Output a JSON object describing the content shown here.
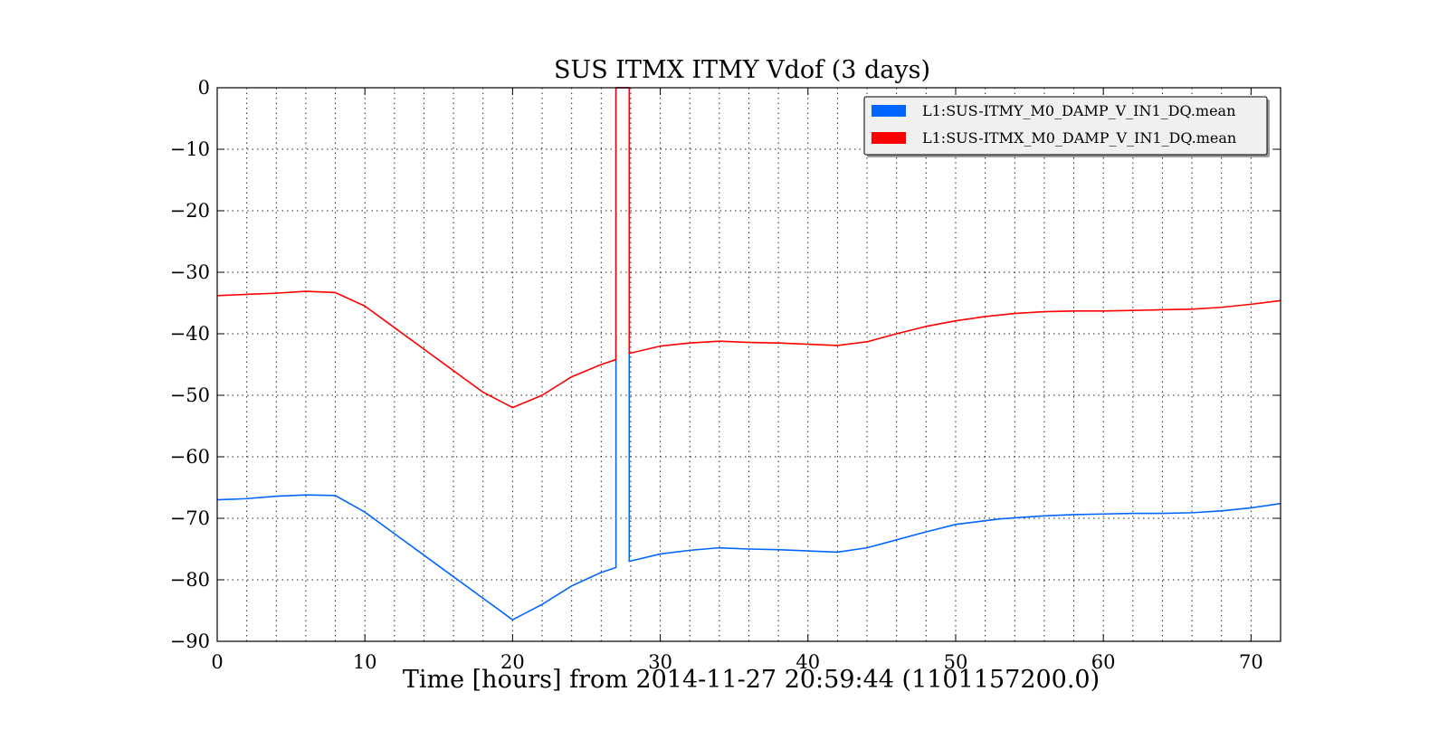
{
  "chart_data": {
    "type": "line",
    "title": "SUS ITMX ITMY Vdof (3 days)",
    "xlabel": "Time [hours] from 2014-11-27 20:59:44 (1101157200.0)",
    "ylabel": "",
    "xlim": [
      0,
      72
    ],
    "ylim": [
      -90,
      0
    ],
    "xticks": [
      0,
      10,
      20,
      30,
      40,
      50,
      60,
      70
    ],
    "xtick_labels": [
      "0",
      "10",
      "20",
      "30",
      "40",
      "50",
      "60",
      "70"
    ],
    "yticks": [
      0,
      -10,
      -20,
      -30,
      -40,
      -50,
      -60,
      -70,
      -80,
      -90
    ],
    "ytick_labels": [
      "0",
      "−10",
      "−20",
      "−30",
      "−40",
      "−50",
      "−60",
      "−70",
      "−80",
      "−90"
    ],
    "grid": true,
    "legend_position": "top-right",
    "series": [
      {
        "name": "L1:SUS-ITMY_M0_DAMP_V_IN1_DQ.mean",
        "color": "#0066ff",
        "points": [
          [
            0,
            -67.0
          ],
          [
            2,
            -66.8
          ],
          [
            4,
            -66.4
          ],
          [
            6,
            -66.2
          ],
          [
            8,
            -66.3
          ],
          [
            10,
            -69.0
          ],
          [
            12,
            -72.5
          ],
          [
            14,
            -76.0
          ],
          [
            16,
            -79.5
          ],
          [
            18,
            -83.0
          ],
          [
            20,
            -86.5
          ],
          [
            22,
            -84.0
          ],
          [
            24,
            -81.0
          ],
          [
            26,
            -78.8
          ],
          [
            27.0,
            -78.0
          ],
          [
            27.0,
            0
          ],
          [
            27.9,
            0
          ],
          [
            27.9,
            -77.0
          ],
          [
            30,
            -75.8
          ],
          [
            32,
            -75.2
          ],
          [
            34,
            -74.8
          ],
          [
            36,
            -75.0
          ],
          [
            38,
            -75.1
          ],
          [
            40,
            -75.3
          ],
          [
            42,
            -75.5
          ],
          [
            44,
            -74.8
          ],
          [
            46,
            -73.5
          ],
          [
            48,
            -72.2
          ],
          [
            50,
            -71.0
          ],
          [
            52,
            -70.4
          ],
          [
            53,
            -70.1
          ],
          [
            56,
            -69.6
          ],
          [
            58,
            -69.4
          ],
          [
            60,
            -69.3
          ],
          [
            62,
            -69.2
          ],
          [
            64,
            -69.2
          ],
          [
            66,
            -69.1
          ],
          [
            68,
            -68.8
          ],
          [
            70,
            -68.3
          ],
          [
            72,
            -67.6
          ]
        ]
      },
      {
        "name": "L1:SUS-ITMX_M0_DAMP_V_IN1_DQ.mean",
        "color": "#ff0000",
        "points": [
          [
            0,
            -33.8
          ],
          [
            2,
            -33.6
          ],
          [
            4,
            -33.4
          ],
          [
            6,
            -33.1
          ],
          [
            8,
            -33.3
          ],
          [
            10,
            -35.5
          ],
          [
            12,
            -39.0
          ],
          [
            14,
            -42.5
          ],
          [
            16,
            -46.0
          ],
          [
            18,
            -49.5
          ],
          [
            20,
            -52.0
          ],
          [
            22,
            -50.0
          ],
          [
            24,
            -47.0
          ],
          [
            26,
            -45.0
          ],
          [
            27.0,
            -44.2
          ],
          [
            27.0,
            0
          ],
          [
            27.9,
            0
          ],
          [
            27.9,
            -43.2
          ],
          [
            30,
            -42.0
          ],
          [
            32,
            -41.5
          ],
          [
            34,
            -41.2
          ],
          [
            36,
            -41.4
          ],
          [
            38,
            -41.5
          ],
          [
            40,
            -41.7
          ],
          [
            42,
            -41.9
          ],
          [
            44,
            -41.3
          ],
          [
            46,
            -40.0
          ],
          [
            48,
            -38.8
          ],
          [
            50,
            -37.9
          ],
          [
            52,
            -37.2
          ],
          [
            54,
            -36.7
          ],
          [
            56,
            -36.4
          ],
          [
            58,
            -36.3
          ],
          [
            60,
            -36.3
          ],
          [
            62,
            -36.2
          ],
          [
            64,
            -36.1
          ],
          [
            66,
            -36.0
          ],
          [
            68,
            -35.7
          ],
          [
            70,
            -35.2
          ],
          [
            72,
            -34.6
          ]
        ]
      }
    ]
  }
}
